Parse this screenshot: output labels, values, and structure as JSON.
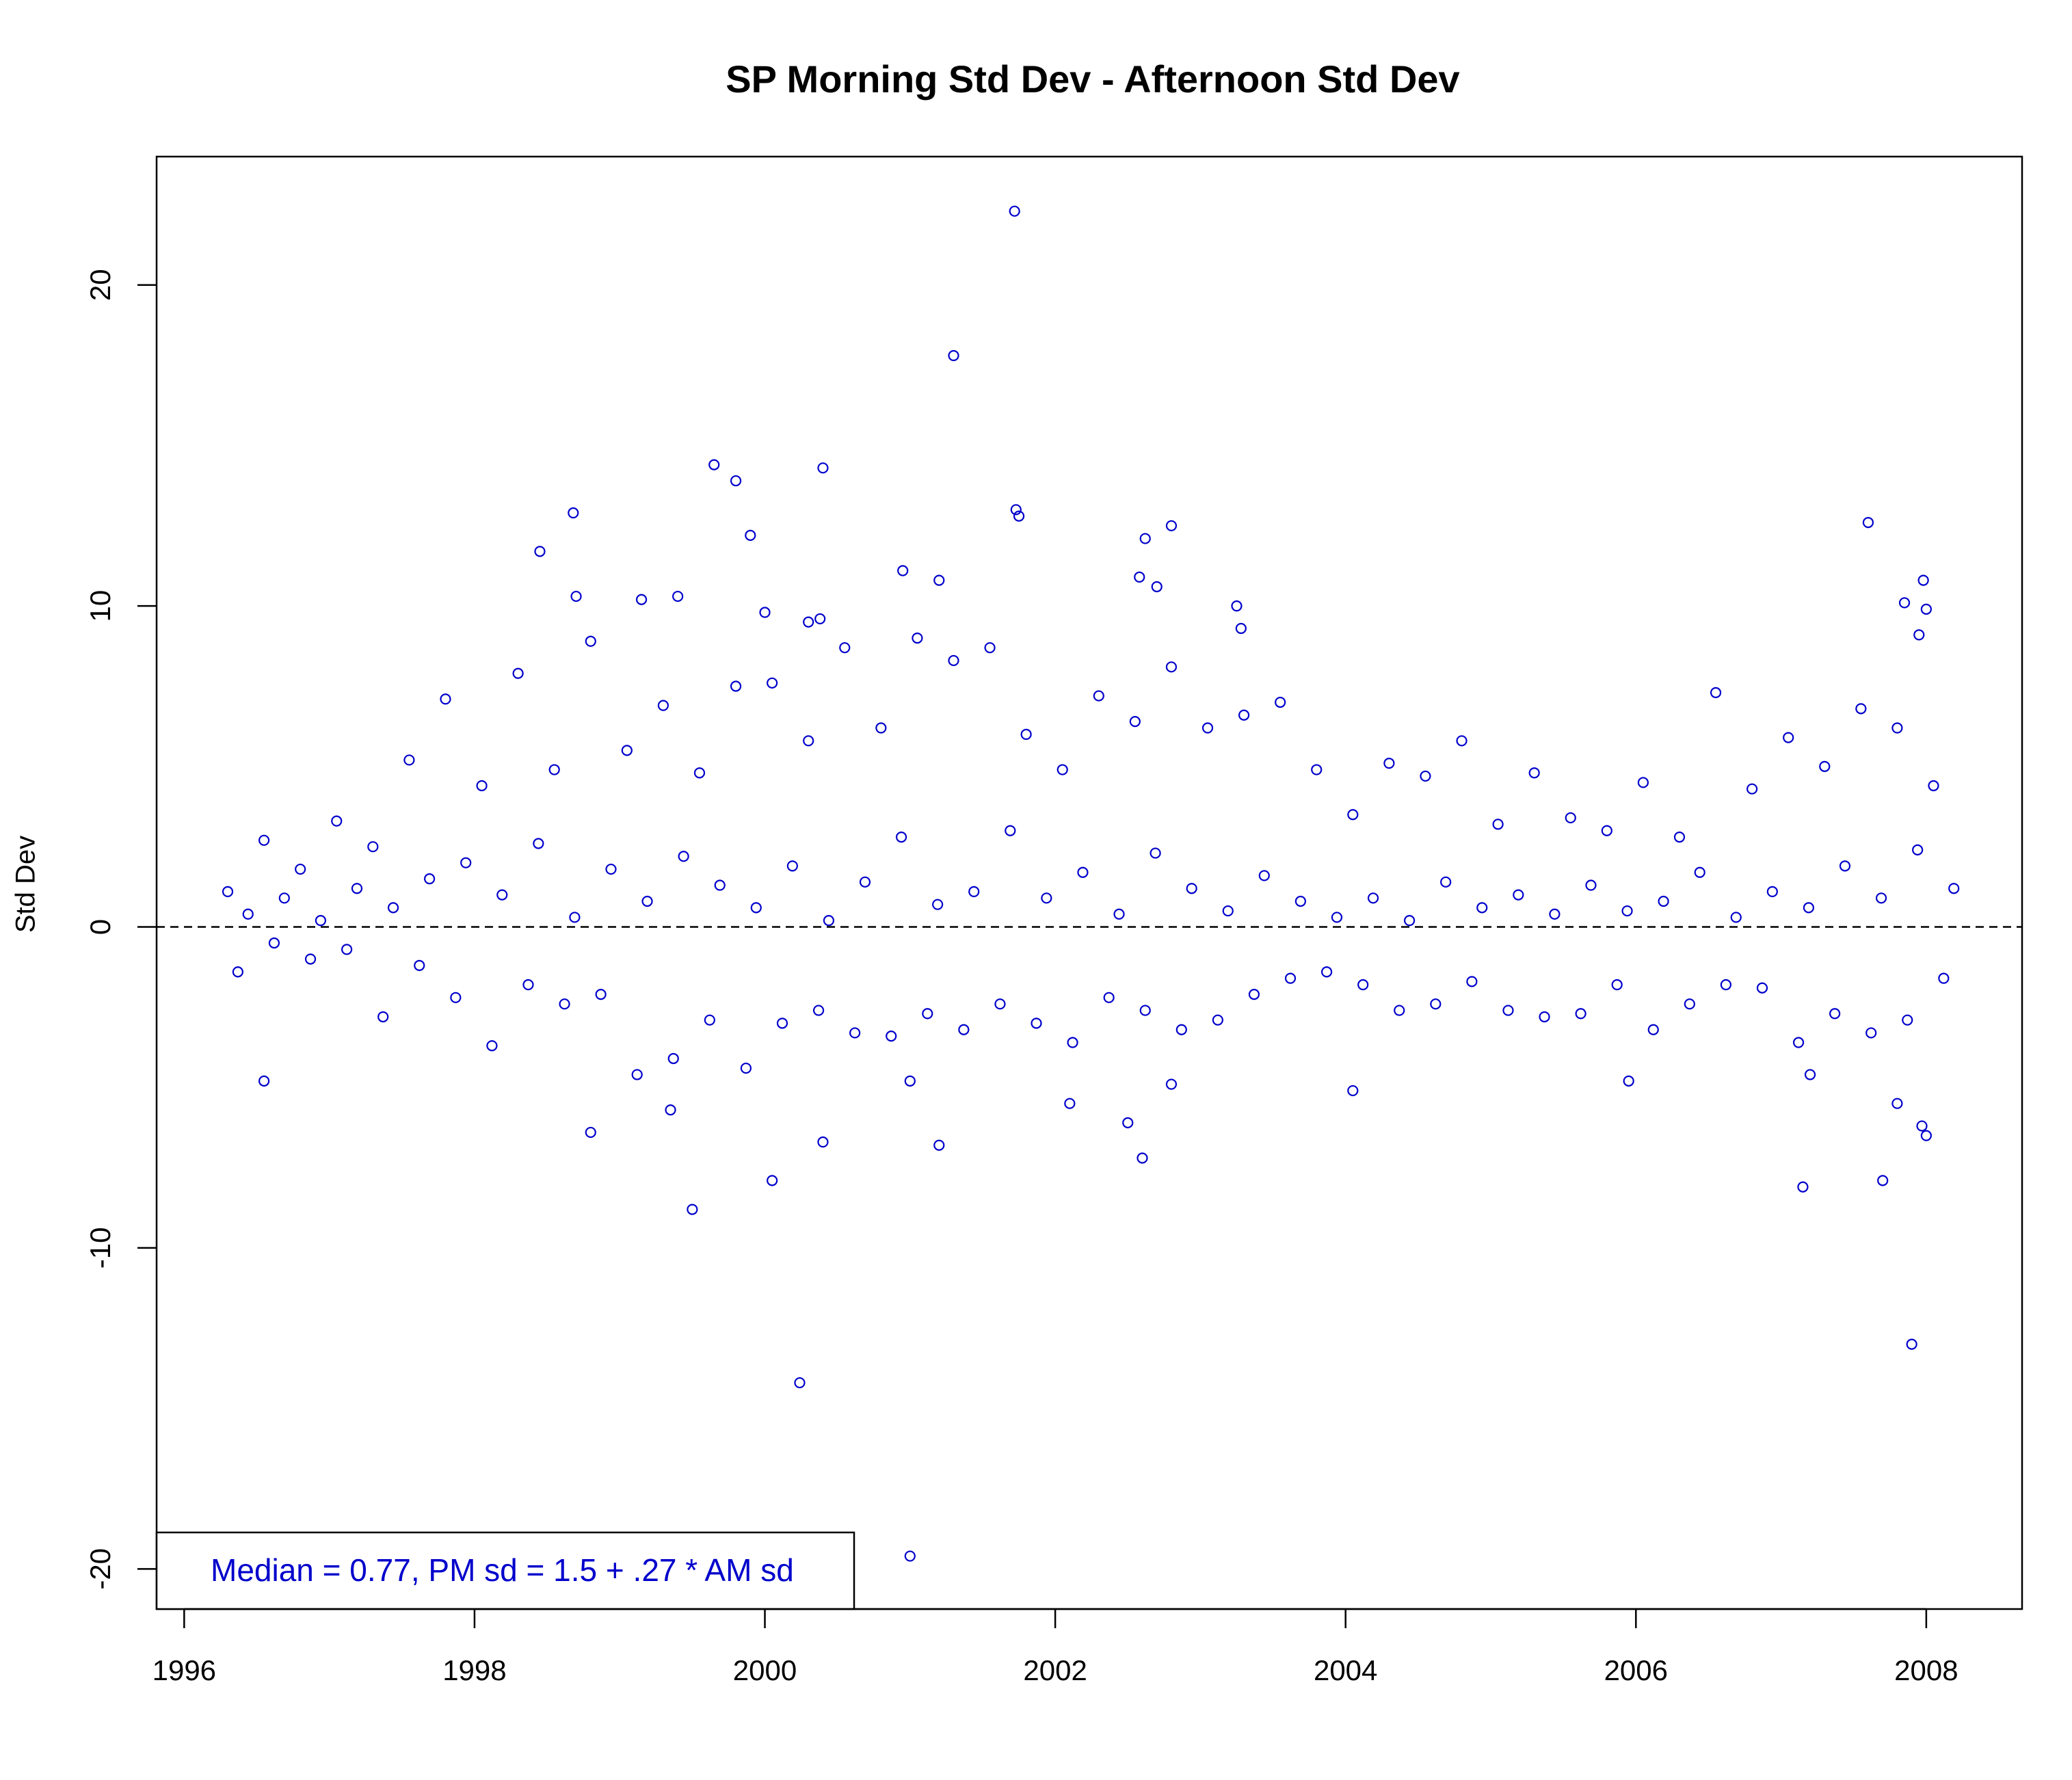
{
  "chart_data": {
    "type": "scatter",
    "title": "SP Morning Std Dev - Afternoon Std Dev",
    "y_label": "Std Dev",
    "annotation": "Median = 0.77,  PM sd = 1.5 + .27 * AM sd",
    "color": "#0000cc",
    "hline": 0,
    "xlim": [
      1995.81,
      2008.66
    ],
    "xticks": [
      1996,
      1998,
      2000,
      2002,
      2004,
      2006,
      2008
    ],
    "ylim": [
      -21.25,
      24
    ],
    "yticks": [
      -20,
      -10,
      0,
      10,
      20
    ],
    "x": [
      2001.72,
      2001.3,
      1999.65,
      1999.8,
      2000.4,
      2001.73,
      2001.75,
      1998.68,
      1999.9,
      2002.62,
      2002.8,
      2007.6,
      1998.45,
      2000.95,
      2001.2,
      2002.58,
      2002.7,
      2003.25,
      2007.85,
      2007.98,
      2008.0,
      1998.7,
      1999.15,
      1999.4,
      2000.0,
      2000.3,
      2000.38,
      2003.28,
      2007.95,
      1999.5,
      2000.05,
      2000.24,
      2001.0,
      2007.9,
      2007.15,
      2007.7,
      2002.6,
      1998.8,
      2000.4,
      2001.2,
      2008.0,
      2007.97,
      1996.55,
      2004.05,
      2005.95,
      2001.0,
      2007.8,
      2007.2,
      1999.35,
      2002.1,
      2002.5,
      2002.8,
      1996.3,
      1996.37,
      1996.44,
      1996.55,
      1996.62,
      1996.69,
      1996.8,
      1996.87,
      1996.94,
      1997.05,
      1997.12,
      1997.19,
      1997.3,
      1997.37,
      1997.44,
      1997.55,
      1997.62,
      1997.69,
      1997.8,
      1997.87,
      1997.94,
      1998.05,
      1998.12,
      1998.19,
      1998.3,
      1998.37,
      1998.44,
      1998.55,
      1998.62,
      1998.69,
      1998.8,
      1998.87,
      1998.94,
      1999.05,
      1999.12,
      1999.19,
      1999.3,
      1999.37,
      1999.44,
      1999.55,
      1999.62,
      1999.69,
      1999.8,
      1999.87,
      1999.94,
      2000.05,
      2000.12,
      2000.19,
      2000.3,
      2000.37,
      2000.44,
      2000.55,
      2000.62,
      2000.69,
      2000.8,
      2000.87,
      2000.94,
      2001.05,
      2001.12,
      2001.19,
      2001.3,
      2001.37,
      2001.44,
      2001.55,
      2001.62,
      2001.69,
      2001.8,
      2001.87,
      2001.94,
      2002.05,
      2002.12,
      2002.19,
      2002.3,
      2002.37,
      2002.44,
      2002.55,
      2002.62,
      2002.69,
      2002.8,
      2002.87,
      2002.94,
      2003.05,
      2003.12,
      2003.19,
      2003.3,
      2003.37,
      2003.44,
      2003.55,
      2003.62,
      2003.69,
      2003.8,
      2003.87,
      2003.94,
      2004.05,
      2004.12,
      2004.19,
      2004.3,
      2004.37,
      2004.44,
      2004.55,
      2004.62,
      2004.69,
      2004.8,
      2004.87,
      2004.94,
      2005.05,
      2005.12,
      2005.19,
      2005.3,
      2005.37,
      2005.44,
      2005.55,
      2005.62,
      2005.69,
      2005.8,
      2005.87,
      2005.94,
      2006.05,
      2006.12,
      2006.19,
      2006.3,
      2006.37,
      2006.44,
      2006.55,
      2006.62,
      2006.69,
      2006.8,
      2006.87,
      2006.94,
      2007.05,
      2007.12,
      2007.19,
      2007.3,
      2007.37,
      2007.44,
      2007.55,
      2007.62,
      2007.69,
      2007.8,
      2007.87,
      2007.94,
      2008.05,
      2008.12,
      2008.19
    ],
    "values": [
      22.3,
      17.8,
      14.4,
      13.9,
      14.3,
      13.0,
      12.8,
      12.9,
      12.2,
      12.1,
      12.5,
      12.6,
      11.7,
      11.1,
      10.8,
      10.9,
      10.6,
      10.0,
      10.1,
      10.8,
      9.9,
      10.3,
      10.2,
      10.3,
      9.8,
      9.5,
      9.6,
      9.3,
      9.1,
      -8.8,
      -7.9,
      -14.2,
      -19.6,
      -13.0,
      -8.1,
      -7.9,
      -7.2,
      -6.4,
      -6.7,
      -6.8,
      -6.5,
      -6.2,
      -4.8,
      -5.1,
      -4.8,
      -4.8,
      -5.5,
      -4.6,
      -5.7,
      -5.5,
      -6.1,
      -4.9,
      1.1,
      -1.4,
      0.4,
      2.7,
      -0.5,
      0.9,
      1.8,
      -1.0,
      0.2,
      3.3,
      -0.7,
      1.2,
      2.5,
      -2.8,
      0.6,
      5.2,
      -1.2,
      1.5,
      7.1,
      -2.2,
      2.0,
      4.4,
      -3.7,
      1.0,
      7.9,
      -1.8,
      2.6,
      4.9,
      -2.4,
      0.3,
      8.9,
      -2.1,
      1.8,
      5.5,
      -4.6,
      0.8,
      6.9,
      -4.1,
      2.2,
      4.8,
      -2.9,
      1.3,
      7.5,
      -4.4,
      0.6,
      7.6,
      -3.0,
      1.9,
      5.8,
      -2.6,
      0.2,
      8.7,
      -3.3,
      1.4,
      6.2,
      -3.4,
      2.8,
      9.0,
      -2.7,
      0.7,
      8.3,
      -3.2,
      1.1,
      8.7,
      -2.4,
      3.0,
      6.0,
      -3.0,
      0.9,
      4.9,
      -3.6,
      1.7,
      7.2,
      -2.2,
      0.4,
      6.4,
      -2.6,
      2.3,
      8.1,
      -3.2,
      1.2,
      6.2,
      -2.9,
      0.5,
      6.6,
      -2.1,
      1.6,
      7.0,
      -1.6,
      0.8,
      4.9,
      -1.4,
      0.3,
      3.5,
      -1.8,
      0.9,
      5.1,
      -2.6,
      0.2,
      4.7,
      -2.4,
      1.4,
      5.8,
      -1.7,
      0.6,
      3.2,
      -2.6,
      1.0,
      4.8,
      -2.8,
      0.4,
      3.4,
      -2.7,
      1.3,
      3.0,
      -1.8,
      0.5,
      4.5,
      -3.2,
      0.8,
      2.8,
      -2.4,
      1.7,
      7.3,
      -1.8,
      0.3,
      4.3,
      -1.9,
      1.1,
      5.9,
      -3.6,
      0.6,
      5.0,
      -2.7,
      1.9,
      6.8,
      -3.3,
      0.9,
      6.2,
      -2.9,
      2.4,
      4.4,
      -1.6,
      1.2
    ]
  }
}
